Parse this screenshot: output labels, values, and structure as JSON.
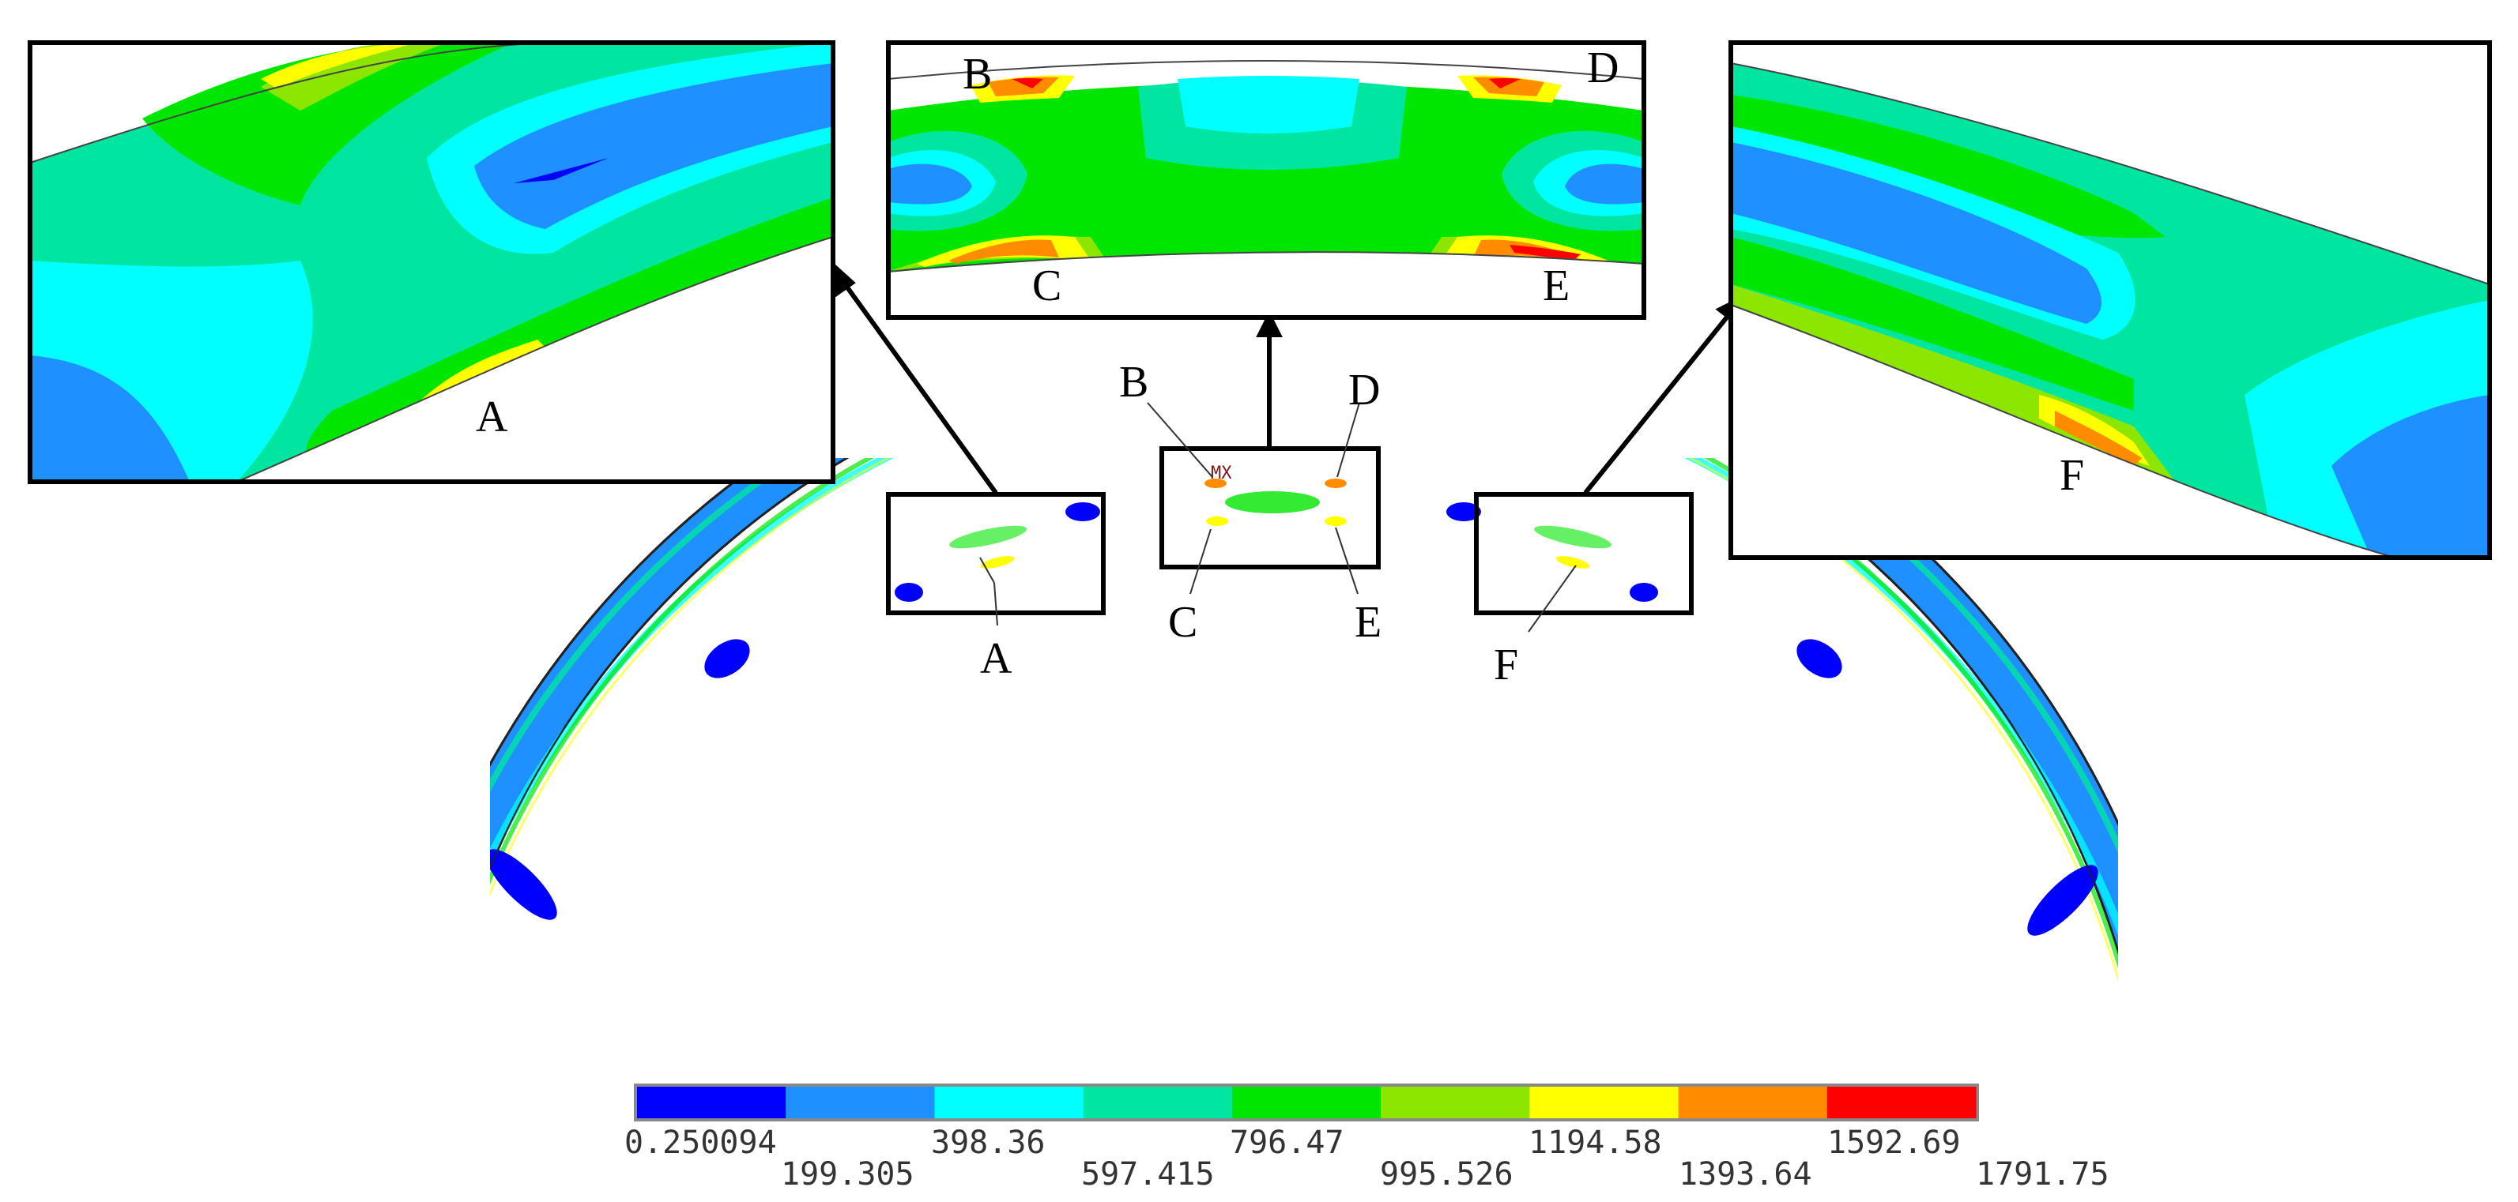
{
  "mx_label": "MX",
  "labels": {
    "A": "A",
    "B": "B",
    "C": "C",
    "D": "D",
    "E": "E",
    "F": "F"
  },
  "legend": {
    "ticks_top": [
      "0.250094",
      "398.36",
      "796.47",
      "1194.58",
      "1592.69"
    ],
    "ticks_bottom": [
      "199.305",
      "597.415",
      "995.526",
      "1393.64",
      "1791.75"
    ],
    "colors": [
      "#0000ff",
      "#1e90ff",
      "#00ffff",
      "#00e6a0",
      "#00e600",
      "#8ce600",
      "#ffff00",
      "#ff8c00",
      "#ff0000"
    ]
  }
}
